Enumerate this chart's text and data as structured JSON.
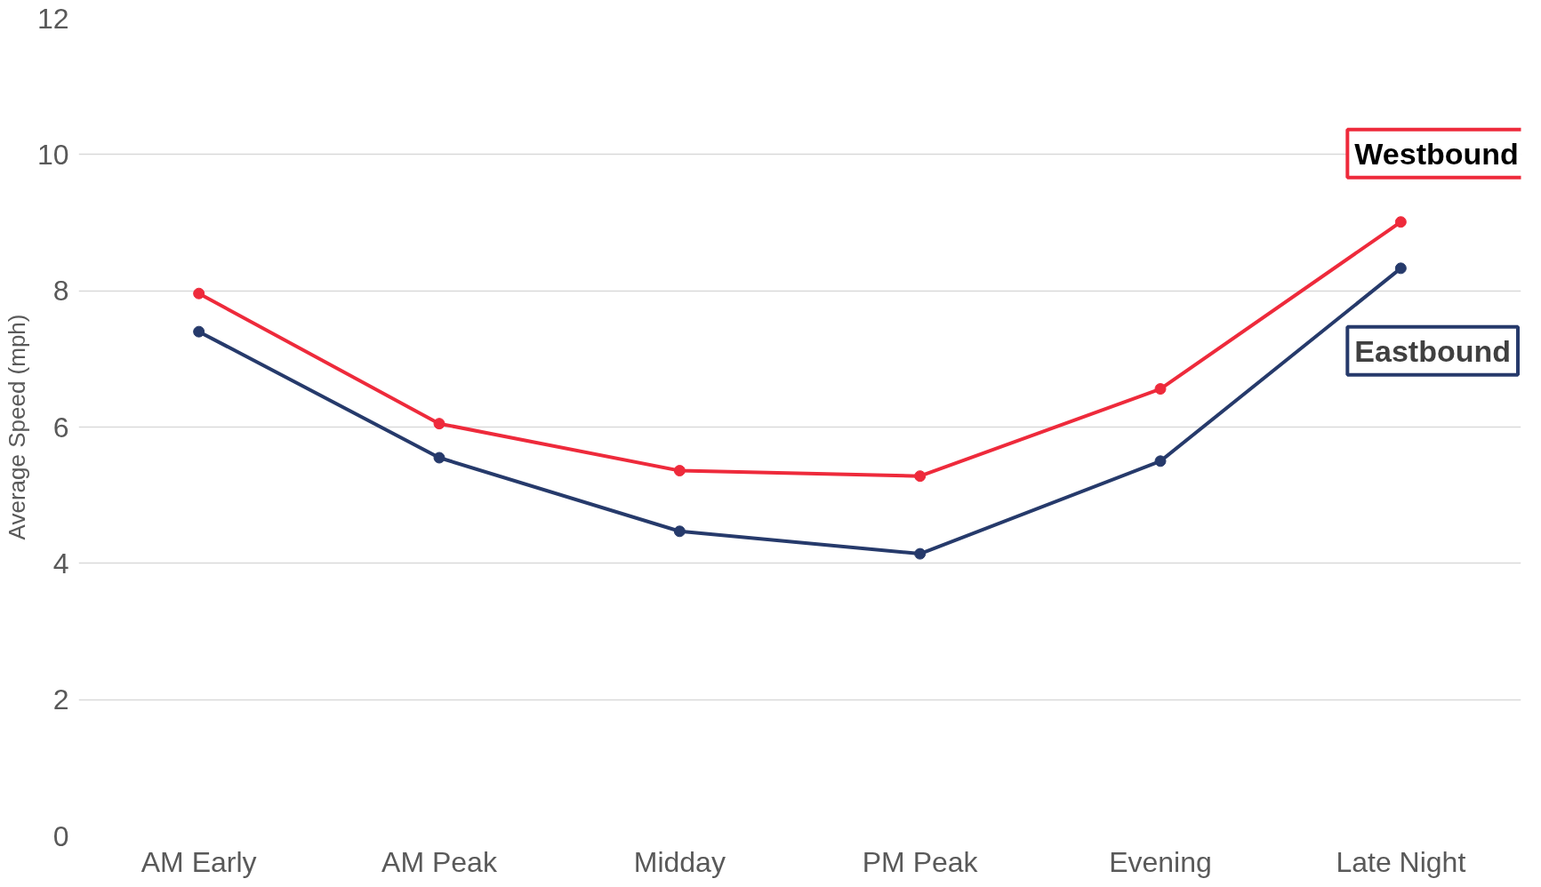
{
  "chart_data": {
    "type": "line",
    "ylabel": "Average Speed (mph)",
    "categories": [
      "AM Early",
      "AM Peak",
      "Midday",
      "PM Peak",
      "Evening",
      "Late Night"
    ],
    "series": [
      {
        "name": "Westbound",
        "color": "#ee2a3b",
        "values": [
          7.96,
          6.05,
          5.36,
          5.28,
          6.56,
          9.01
        ]
      },
      {
        "name": "Eastbound",
        "color": "#263a6b",
        "values": [
          7.4,
          5.55,
          4.47,
          4.14,
          5.5,
          8.33
        ]
      }
    ],
    "ylim": [
      0,
      12
    ],
    "yticks": [
      0,
      2,
      4,
      6,
      8,
      10,
      12
    ],
    "grid": "y",
    "marker": "circle",
    "line_style": "solid"
  }
}
